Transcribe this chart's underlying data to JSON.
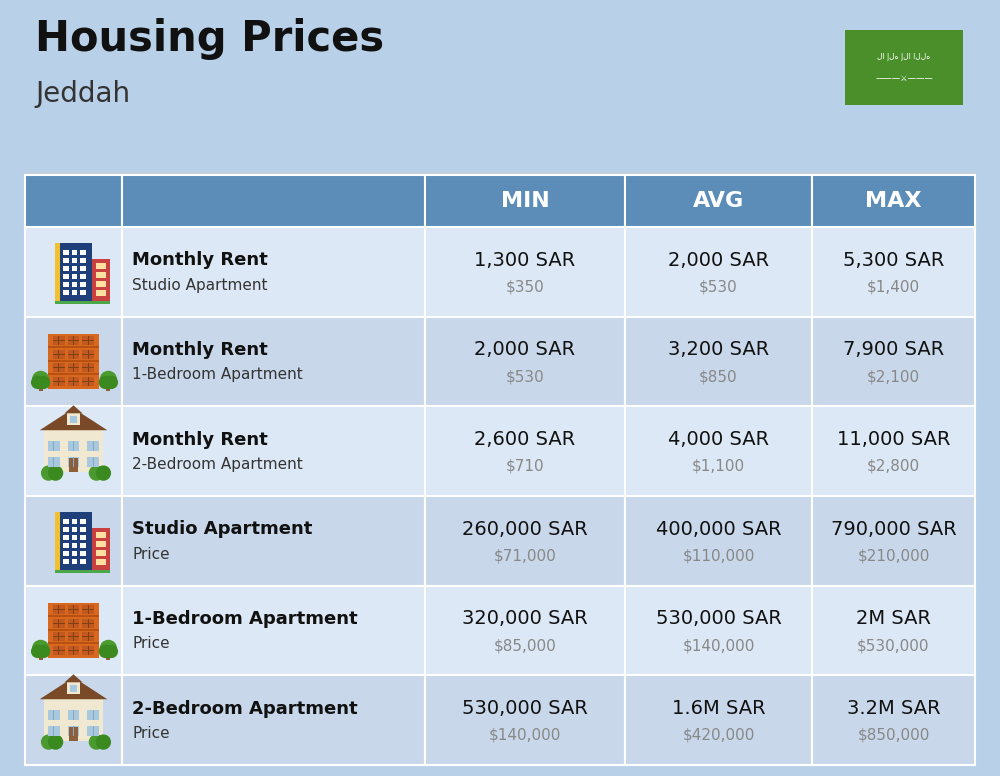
{
  "title": "Housing Prices",
  "subtitle": "Jeddah",
  "bg_color": "#b8d0e8",
  "header_bg": "#5b8db8",
  "header_text_color": "#ffffff",
  "header_labels": [
    "MIN",
    "AVG",
    "MAX"
  ],
  "row_bg_odd": "#dce8f5",
  "row_bg_even": "#c8d8ea",
  "rows": [
    {
      "icon_type": "blue_office",
      "bold": "Monthly Rent",
      "sub": "Studio Apartment",
      "min_sar": "1,300 SAR",
      "min_usd": "$350",
      "avg_sar": "2,000 SAR",
      "avg_usd": "$530",
      "max_sar": "5,300 SAR",
      "max_usd": "$1,400"
    },
    {
      "icon_type": "orange_apt",
      "bold": "Monthly Rent",
      "sub": "1-Bedroom Apartment",
      "min_sar": "2,000 SAR",
      "min_usd": "$530",
      "avg_sar": "3,200 SAR",
      "avg_usd": "$850",
      "max_sar": "7,900 SAR",
      "max_usd": "$2,100"
    },
    {
      "icon_type": "cream_house",
      "bold": "Monthly Rent",
      "sub": "2-Bedroom Apartment",
      "min_sar": "2,600 SAR",
      "min_usd": "$710",
      "avg_sar": "4,000 SAR",
      "avg_usd": "$1,100",
      "max_sar": "11,000 SAR",
      "max_usd": "$2,800"
    },
    {
      "icon_type": "blue_office",
      "bold": "Studio Apartment",
      "sub": "Price",
      "min_sar": "260,000 SAR",
      "min_usd": "$71,000",
      "avg_sar": "400,000 SAR",
      "avg_usd": "$110,000",
      "max_sar": "790,000 SAR",
      "max_usd": "$210,000"
    },
    {
      "icon_type": "orange_apt",
      "bold": "1-Bedroom Apartment",
      "sub": "Price",
      "min_sar": "320,000 SAR",
      "min_usd": "$85,000",
      "avg_sar": "530,000 SAR",
      "avg_usd": "$140,000",
      "max_sar": "2M SAR",
      "max_usd": "$530,000"
    },
    {
      "icon_type": "cream_house",
      "bold": "2-Bedroom Apartment",
      "sub": "Price",
      "min_sar": "530,000 SAR",
      "min_usd": "$140,000",
      "avg_sar": "1.6M SAR",
      "avg_usd": "$420,000",
      "max_sar": "3.2M SAR",
      "max_usd": "$850,000"
    }
  ],
  "flag_green": "#4a8f2a",
  "sar_fontsize": 14,
  "usd_fontsize": 11,
  "bold_fontsize": 13,
  "sub_fontsize": 11,
  "header_fontsize": 16
}
